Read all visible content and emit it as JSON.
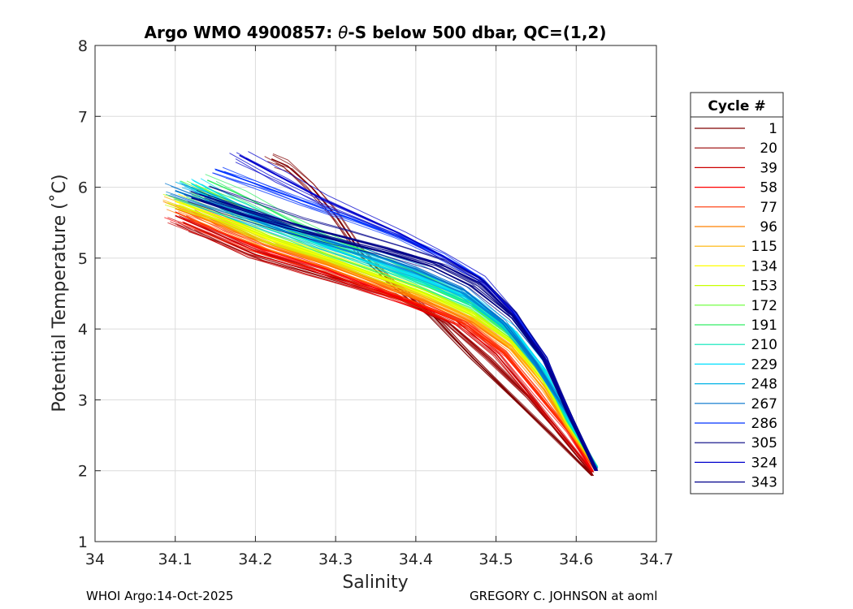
{
  "chart_data": {
    "type": "line",
    "title_prefix": "Argo WMO 4900857: ",
    "title_theta": "θ",
    "title_suffix": "-S below 500 dbar,  QC=(1,2)",
    "xlabel": "Salinity",
    "ylabel": "Potential Temperature (˚C)",
    "xlim": [
      34,
      34.7
    ],
    "ylim": [
      1,
      8
    ],
    "xticks": [
      34,
      34.1,
      34.2,
      34.3,
      34.4,
      34.5,
      34.6,
      34.7
    ],
    "xtick_labels": [
      "34",
      "34.1",
      "34.2",
      "34.3",
      "34.4",
      "34.5",
      "34.6",
      "34.7"
    ],
    "yticks": [
      1,
      2,
      3,
      4,
      5,
      6,
      7,
      8
    ],
    "ytick_labels": [
      "1",
      "2",
      "3",
      "4",
      "5",
      "6",
      "7",
      "8"
    ],
    "grid": true,
    "legend_title": "Cycle #",
    "legend_position": "right",
    "series": [
      {
        "name": "1",
        "color": "#800000",
        "s": [
          34.22,
          34.24,
          34.27,
          34.3,
          34.33,
          34.37,
          34.42,
          34.47,
          34.52,
          34.57,
          34.62
        ],
        "t": [
          6.4,
          6.3,
          6.0,
          5.6,
          5.1,
          4.65,
          4.2,
          3.6,
          3.05,
          2.5,
          1.93
        ]
      },
      {
        "name": "20",
        "color": "#990000",
        "s": [
          34.11,
          34.15,
          34.2,
          34.26,
          34.32,
          34.38,
          34.44,
          34.49,
          34.54,
          34.58,
          34.62
        ],
        "t": [
          5.5,
          5.3,
          5.05,
          4.85,
          4.65,
          4.45,
          4.1,
          3.6,
          3.05,
          2.5,
          1.95
        ]
      },
      {
        "name": "39",
        "color": "#cc0000",
        "s": [
          34.1,
          34.15,
          34.2,
          34.27,
          34.33,
          34.39,
          34.45,
          34.5,
          34.54,
          34.58,
          34.62
        ],
        "t": [
          5.6,
          5.35,
          5.1,
          4.85,
          4.62,
          4.4,
          4.12,
          3.65,
          3.1,
          2.55,
          1.98
        ]
      },
      {
        "name": "58",
        "color": "#ff0000",
        "s": [
          34.1,
          34.15,
          34.21,
          34.28,
          34.34,
          34.4,
          34.46,
          34.51,
          34.55,
          34.59,
          34.62
        ],
        "t": [
          5.65,
          5.4,
          5.12,
          4.88,
          4.62,
          4.35,
          4.08,
          3.65,
          3.1,
          2.55,
          2.0
        ]
      },
      {
        "name": "77",
        "color": "#ff3300",
        "s": [
          34.11,
          34.16,
          34.22,
          34.29,
          34.35,
          34.41,
          34.46,
          34.51,
          34.55,
          34.59,
          34.625
        ],
        "t": [
          5.6,
          5.35,
          5.1,
          4.86,
          4.6,
          4.33,
          4.08,
          3.67,
          3.12,
          2.56,
          2.0
        ]
      },
      {
        "name": "96",
        "color": "#ff8000",
        "s": [
          34.1,
          34.16,
          34.22,
          34.29,
          34.35,
          34.41,
          34.47,
          34.52,
          34.56,
          34.59,
          34.625
        ],
        "t": [
          5.7,
          5.45,
          5.15,
          4.9,
          4.65,
          4.4,
          4.1,
          3.7,
          3.15,
          2.6,
          2.02
        ]
      },
      {
        "name": "115",
        "color": "#ffb300",
        "s": [
          34.1,
          34.16,
          34.22,
          34.29,
          34.35,
          34.41,
          34.47,
          34.52,
          34.56,
          34.59,
          34.625
        ],
        "t": [
          5.75,
          5.5,
          5.2,
          4.95,
          4.7,
          4.45,
          4.15,
          3.75,
          3.2,
          2.62,
          2.03
        ]
      },
      {
        "name": "134",
        "color": "#ffff00",
        "s": [
          34.1,
          34.16,
          34.22,
          34.29,
          34.35,
          34.41,
          34.47,
          34.52,
          34.56,
          34.59,
          34.625
        ],
        "t": [
          5.8,
          5.55,
          5.25,
          5.0,
          4.75,
          4.5,
          4.2,
          3.8,
          3.25,
          2.65,
          2.04
        ]
      },
      {
        "name": "153",
        "color": "#c8ff00",
        "s": [
          34.1,
          34.16,
          34.22,
          34.29,
          34.35,
          34.41,
          34.47,
          34.52,
          34.56,
          34.59,
          34.625
        ],
        "t": [
          5.85,
          5.6,
          5.3,
          5.05,
          4.8,
          4.55,
          4.25,
          3.85,
          3.3,
          2.68,
          2.05
        ]
      },
      {
        "name": "172",
        "color": "#66ff33",
        "s": [
          34.12,
          34.17,
          34.23,
          34.29,
          34.35,
          34.41,
          34.47,
          34.52,
          34.56,
          34.59,
          34.625
        ],
        "t": [
          6.0,
          5.75,
          5.45,
          5.15,
          4.9,
          4.62,
          4.32,
          3.9,
          3.35,
          2.7,
          2.06
        ]
      },
      {
        "name": "191",
        "color": "#33ee66",
        "s": [
          34.14,
          34.19,
          34.24,
          34.3,
          34.36,
          34.42,
          34.47,
          34.52,
          34.56,
          34.59,
          34.625
        ],
        "t": [
          6.1,
          5.85,
          5.55,
          5.25,
          5.0,
          4.7,
          4.4,
          3.95,
          3.4,
          2.72,
          2.06
        ]
      },
      {
        "name": "210",
        "color": "#00e6b8",
        "s": [
          34.12,
          34.17,
          34.23,
          34.29,
          34.35,
          34.41,
          34.47,
          34.52,
          34.56,
          34.59,
          34.625
        ],
        "t": [
          6.0,
          5.7,
          5.4,
          5.15,
          4.9,
          4.65,
          4.35,
          3.95,
          3.4,
          2.72,
          2.05
        ]
      },
      {
        "name": "229",
        "color": "#00e0ff",
        "s": [
          34.12,
          34.17,
          34.23,
          34.29,
          34.35,
          34.41,
          34.47,
          34.52,
          34.56,
          34.59,
          34.625
        ],
        "t": [
          6.05,
          5.75,
          5.45,
          5.2,
          4.95,
          4.7,
          4.42,
          4.0,
          3.45,
          2.75,
          2.05
        ]
      },
      {
        "name": "248",
        "color": "#00b3e6",
        "s": [
          34.1,
          34.16,
          34.22,
          34.28,
          34.34,
          34.4,
          34.46,
          34.51,
          34.55,
          34.59,
          34.625
        ],
        "t": [
          5.95,
          5.7,
          5.45,
          5.22,
          5.0,
          4.78,
          4.5,
          4.05,
          3.48,
          2.77,
          2.04
        ]
      },
      {
        "name": "267",
        "color": "#0073cc",
        "s": [
          34.1,
          34.16,
          34.22,
          34.28,
          34.34,
          34.4,
          34.46,
          34.51,
          34.55,
          34.59,
          34.625
        ],
        "t": [
          5.95,
          5.72,
          5.5,
          5.28,
          5.08,
          4.85,
          4.55,
          4.1,
          3.52,
          2.8,
          2.03
        ]
      },
      {
        "name": "286",
        "color": "#0033ff",
        "s": [
          34.15,
          34.2,
          34.26,
          34.32,
          34.38,
          34.43,
          34.48,
          34.52,
          34.56,
          34.59,
          34.625
        ],
        "t": [
          6.25,
          6.05,
          5.8,
          5.55,
          5.3,
          5.05,
          4.72,
          4.25,
          3.6,
          2.82,
          2.02
        ]
      },
      {
        "name": "305",
        "color": "#000080",
        "s": [
          34.12,
          34.18,
          34.24,
          34.3,
          34.36,
          34.42,
          34.47,
          34.52,
          34.56,
          34.59,
          34.625
        ],
        "t": [
          5.85,
          5.62,
          5.42,
          5.25,
          5.08,
          4.88,
          4.6,
          4.15,
          3.55,
          2.8,
          2.0
        ]
      },
      {
        "name": "324",
        "color": "#0000cc",
        "s": [
          34.18,
          34.23,
          34.28,
          34.33,
          34.38,
          34.43,
          34.48,
          34.52,
          34.56,
          34.59,
          34.625
        ],
        "t": [
          6.45,
          6.15,
          5.85,
          5.6,
          5.35,
          5.05,
          4.72,
          4.25,
          3.6,
          2.85,
          2.0
        ]
      },
      {
        "name": "343",
        "color": "#00008b",
        "s": [
          34.13,
          34.19,
          34.25,
          34.31,
          34.37,
          34.43,
          34.48,
          34.52,
          34.56,
          34.59,
          34.625
        ],
        "t": [
          5.9,
          5.68,
          5.48,
          5.3,
          5.12,
          4.92,
          4.65,
          4.2,
          3.57,
          2.82,
          2.0
        ]
      }
    ]
  },
  "footer": {
    "left": "WHOI Argo:14-Oct-2025",
    "right": "GREGORY C. JOHNSON at aoml"
  }
}
